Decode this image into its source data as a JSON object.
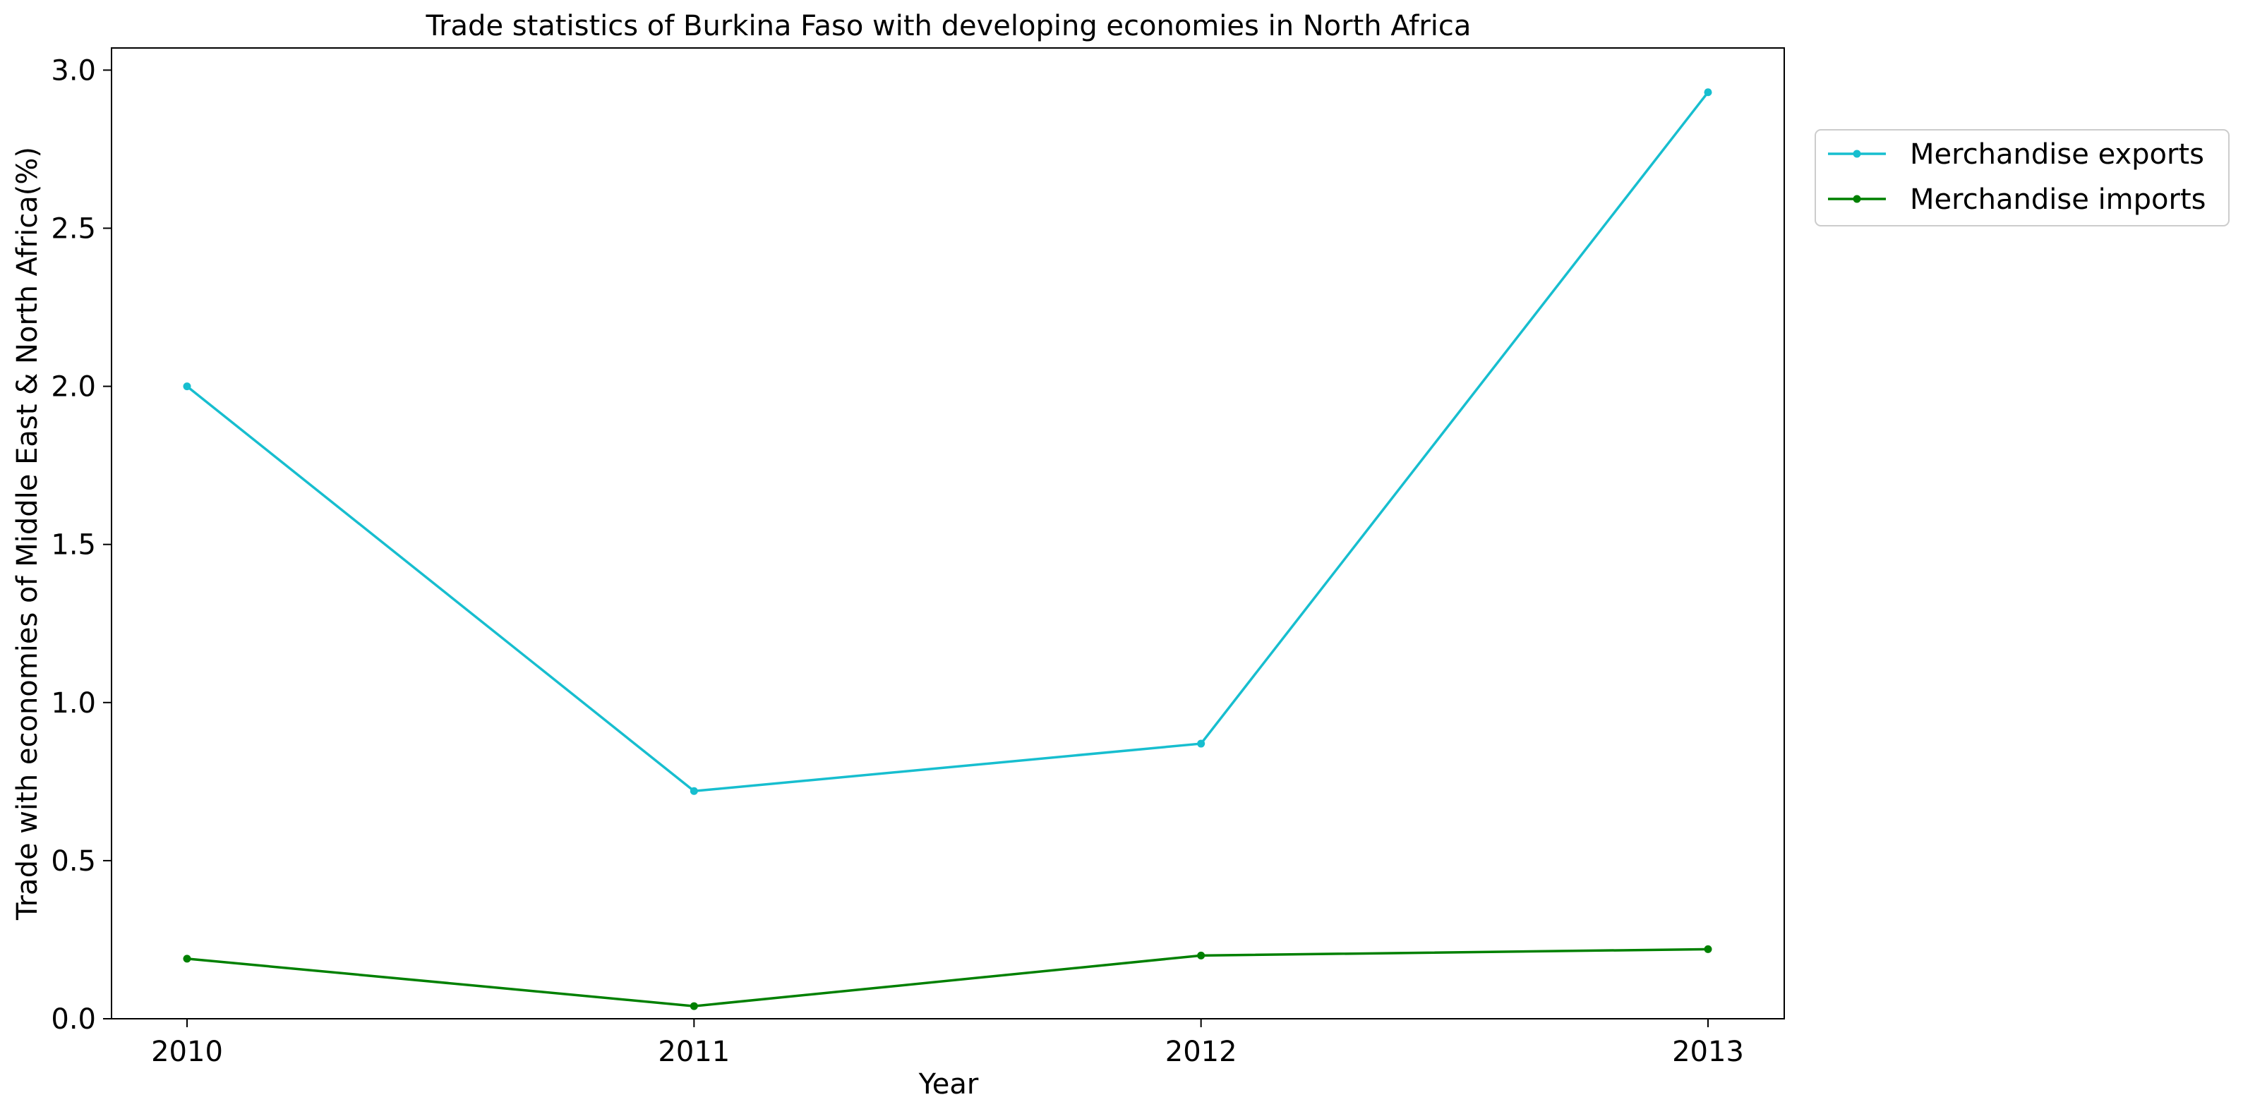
{
  "chart_data": {
    "type": "line",
    "title": "Trade statistics of Burkina Faso with developing economies in North Africa",
    "xlabel": "Year",
    "ylabel": "Trade with economies of Middle East & North Africa(%)",
    "x": [
      "2010",
      "2011",
      "2012",
      "2013"
    ],
    "ylim": [
      0,
      3.07
    ],
    "yticks": [
      "0.0",
      "0.5",
      "1.0",
      "1.5",
      "2.0",
      "2.5",
      "3.0"
    ],
    "grid": false,
    "legend_position": "outside-top-right",
    "series": [
      {
        "name": "Merchandise exports",
        "color": "#17becf",
        "values": [
          2.0,
          0.72,
          0.87,
          2.93
        ]
      },
      {
        "name": "Merchandise imports",
        "color": "#008000",
        "values": [
          0.19,
          0.04,
          0.2,
          0.22
        ]
      }
    ]
  }
}
